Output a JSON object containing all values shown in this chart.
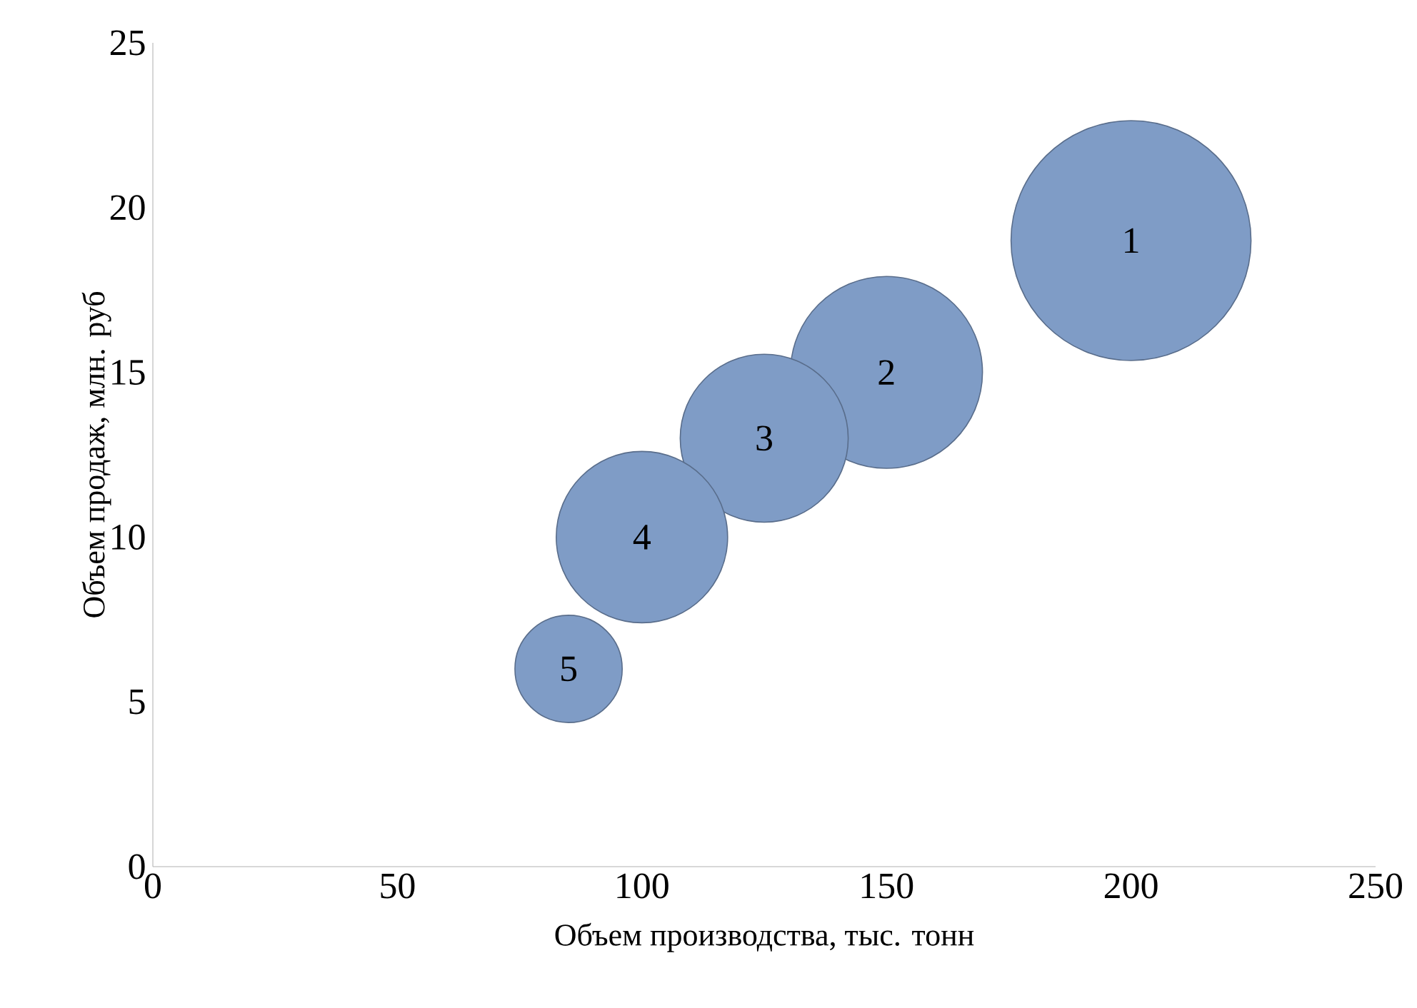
{
  "chart_data": {
    "type": "bubble",
    "xlabel": "Объем производства, тыс. тонн",
    "ylabel": "Объем продаж, млн. руб",
    "x": [
      200,
      150,
      125,
      100,
      85
    ],
    "values": [
      19,
      15,
      13,
      10,
      6
    ],
    "sizes": [
      1,
      0.64,
      0.49,
      0.51,
      0.2
    ],
    "annotations": [
      {
        "text": "1",
        "x": 200,
        "y": 19
      },
      {
        "text": "2",
        "x": 150,
        "y": 15
      },
      {
        "text": "3",
        "x": 125,
        "y": 13
      },
      {
        "text": "4",
        "x": 100,
        "y": 10
      },
      {
        "text": "5",
        "x": 85,
        "y": 6
      }
    ],
    "color": "#7f9cc6",
    "xlim": [
      0,
      250
    ],
    "xticks": [
      0,
      50,
      100,
      150,
      200,
      250
    ],
    "ylim": [
      0,
      25
    ],
    "yticks": [
      0,
      5,
      10,
      15,
      20,
      25
    ],
    "grid": false
  }
}
